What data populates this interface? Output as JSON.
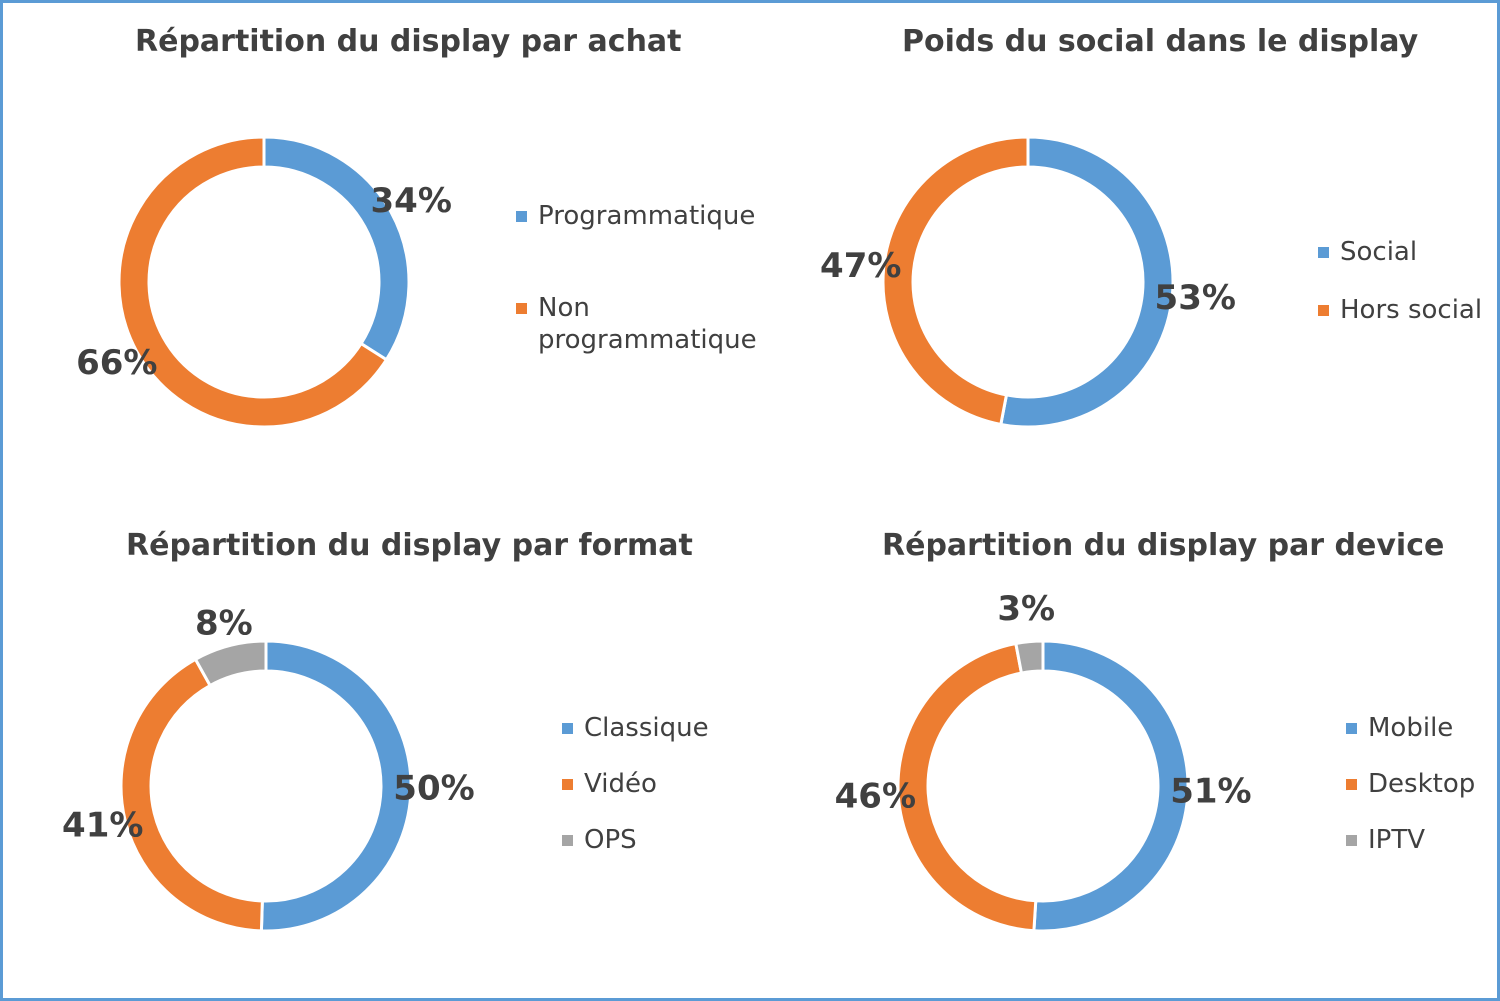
{
  "colors": {
    "blue": "#5b9bd5",
    "orange": "#ed7d31",
    "gray": "#a5a5a5"
  },
  "chart_data": [
    {
      "type": "pie",
      "title": "Répartition du display par achat",
      "categories": [
        "Programmatique",
        "Non programmatique"
      ],
      "values": [
        34,
        66
      ],
      "labels": [
        "34%",
        "66%"
      ],
      "colors": [
        "#5b9bd5",
        "#ed7d31"
      ],
      "legend_position": "right"
    },
    {
      "type": "pie",
      "title": "Poids du social dans le display",
      "categories": [
        "Social",
        "Hors social"
      ],
      "values": [
        53,
        47
      ],
      "labels": [
        "53%",
        "47%"
      ],
      "colors": [
        "#5b9bd5",
        "#ed7d31"
      ],
      "legend_position": "right"
    },
    {
      "type": "pie",
      "title": "Répartition du display par format",
      "categories": [
        "Classique",
        "Vidéo",
        "OPS"
      ],
      "values": [
        50,
        41,
        8
      ],
      "labels": [
        "50%",
        "41%",
        "8%"
      ],
      "colors": [
        "#5b9bd5",
        "#ed7d31",
        "#a5a5a5"
      ],
      "legend_position": "right"
    },
    {
      "type": "pie",
      "title": "Répartition du display par device",
      "categories": [
        "Mobile",
        "Desktop",
        "IPTV"
      ],
      "values": [
        51,
        46,
        3
      ],
      "labels": [
        "51%",
        "46%",
        "3%"
      ],
      "colors": [
        "#5b9bd5",
        "#ed7d31",
        "#a5a5a5"
      ],
      "legend_position": "right"
    }
  ]
}
